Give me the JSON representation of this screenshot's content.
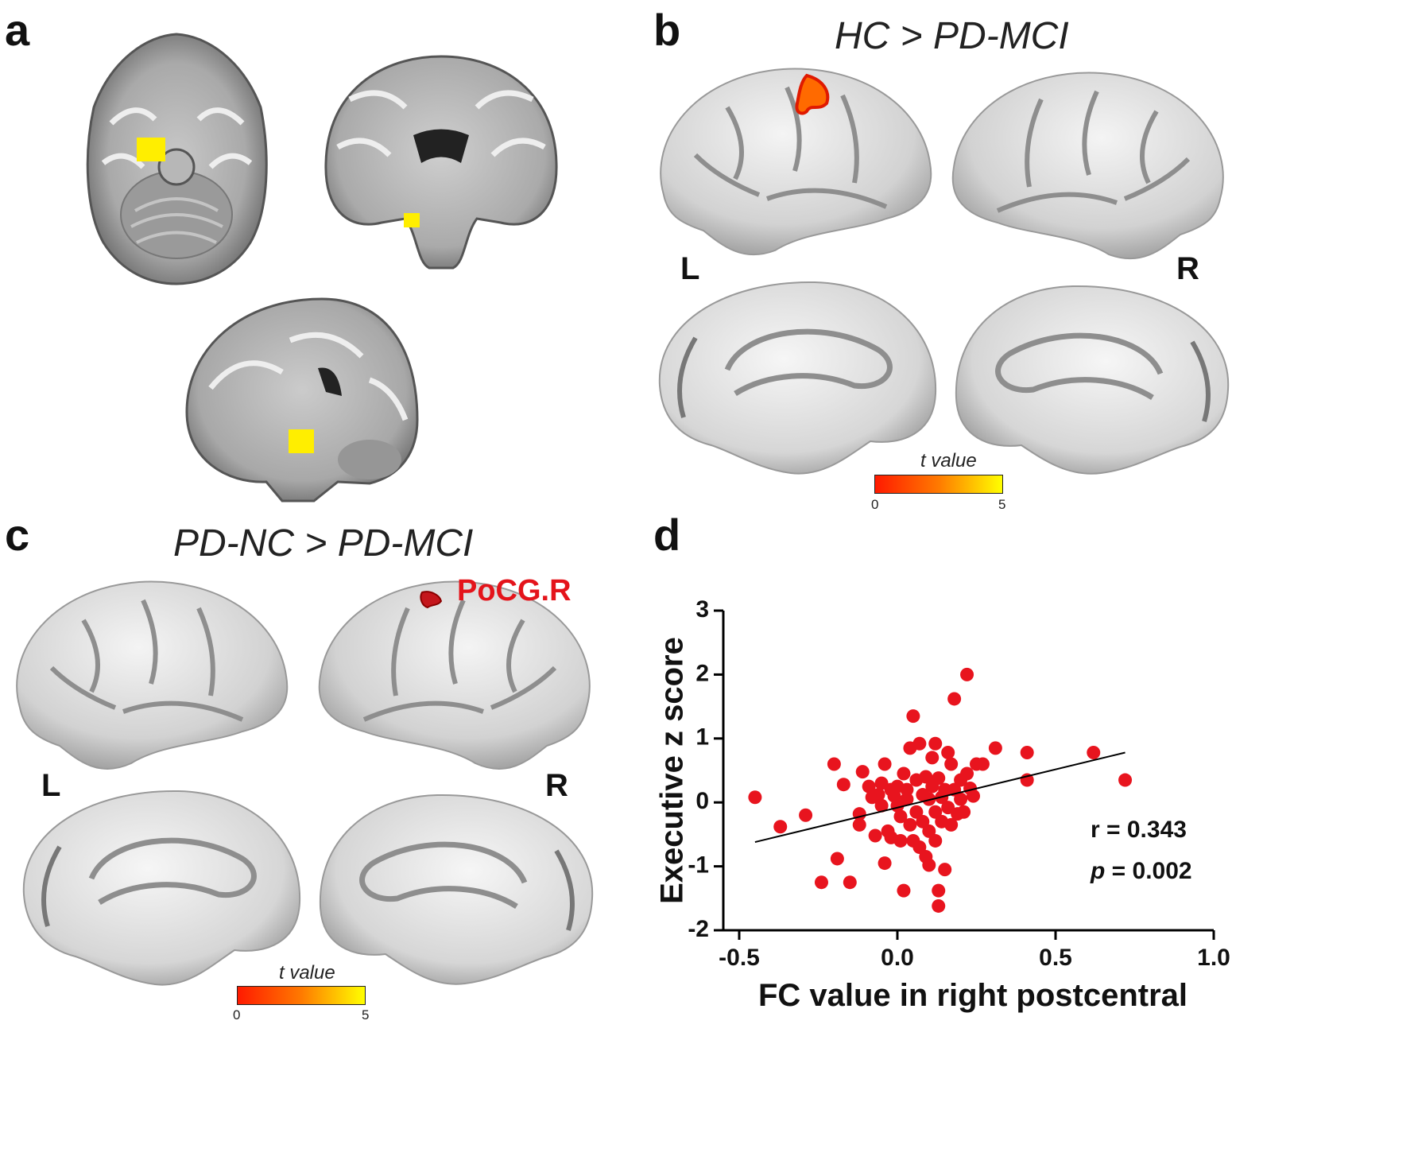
{
  "panels": {
    "a": {
      "letter": "a"
    },
    "b": {
      "letter": "b",
      "title": "HC > PD-MCI",
      "left_label": "L",
      "right_label": "R",
      "colorbar": {
        "title": "t value",
        "min": "0",
        "max": "5"
      }
    },
    "c": {
      "letter": "c",
      "title": "PD-NC > PD-MCI",
      "left_label": "L",
      "right_label": "R",
      "roi_label": "PoCG.R",
      "colorbar": {
        "title": "t value",
        "min": "0",
        "max": "5"
      }
    },
    "d": {
      "letter": "d",
      "stats": {
        "r_text": "r = 0.343",
        "p_letter": "p",
        "p_rest": " = 0.002"
      }
    }
  },
  "colors": {
    "roi_yellow": "#ffee00",
    "roi_red": "#e4141b",
    "scatter_point": "#e8141e"
  },
  "chart_data": {
    "type": "scatter",
    "xlabel": "FC value in right postcentral",
    "ylabel": "Executive z score",
    "xlim": [
      -0.5,
      1.0
    ],
    "ylim": [
      -2,
      3
    ],
    "xticks": [
      "-0.5",
      "0.0",
      "0.5",
      "1.0"
    ],
    "yticks": [
      "-2",
      "-1",
      "0",
      "1",
      "2",
      "3"
    ],
    "regression": {
      "x": [
        -0.45,
        0.72
      ],
      "y": [
        -0.62,
        0.78
      ]
    },
    "points": [
      [
        -0.45,
        0.08
      ],
      [
        -0.37,
        -0.38
      ],
      [
        -0.29,
        -0.2
      ],
      [
        -0.24,
        -1.25
      ],
      [
        -0.2,
        0.6
      ],
      [
        -0.19,
        -0.88
      ],
      [
        -0.17,
        0.28
      ],
      [
        -0.15,
        -1.25
      ],
      [
        -0.12,
        -0.35
      ],
      [
        -0.12,
        -0.18
      ],
      [
        -0.11,
        0.48
      ],
      [
        -0.09,
        0.25
      ],
      [
        -0.08,
        0.08
      ],
      [
        -0.07,
        -0.52
      ],
      [
        -0.06,
        0.12
      ],
      [
        -0.05,
        -0.05
      ],
      [
        -0.05,
        0.3
      ],
      [
        -0.04,
        -0.95
      ],
      [
        -0.04,
        0.6
      ],
      [
        -0.03,
        -0.45
      ],
      [
        -0.02,
        0.2
      ],
      [
        -0.02,
        -0.55
      ],
      [
        -0.01,
        0.1
      ],
      [
        0.0,
        0.25
      ],
      [
        0.0,
        -0.05
      ],
      [
        0.01,
        -0.22
      ],
      [
        0.01,
        -0.6
      ],
      [
        0.02,
        0.45
      ],
      [
        0.02,
        -1.38
      ],
      [
        0.03,
        0.05
      ],
      [
        0.03,
        0.2
      ],
      [
        0.04,
        -0.35
      ],
      [
        0.04,
        0.85
      ],
      [
        0.05,
        -0.6
      ],
      [
        0.05,
        1.35
      ],
      [
        0.06,
        0.35
      ],
      [
        0.06,
        -0.15
      ],
      [
        0.07,
        0.92
      ],
      [
        0.07,
        -0.7
      ],
      [
        0.08,
        0.12
      ],
      [
        0.08,
        -0.3
      ],
      [
        0.09,
        -0.85
      ],
      [
        0.09,
        0.4
      ],
      [
        0.1,
        -0.98
      ],
      [
        0.1,
        0.05
      ],
      [
        0.1,
        -0.45
      ],
      [
        0.11,
        0.7
      ],
      [
        0.11,
        0.25
      ],
      [
        0.12,
        -0.15
      ],
      [
        0.12,
        0.92
      ],
      [
        0.12,
        -0.6
      ],
      [
        0.13,
        0.38
      ],
      [
        0.13,
        -1.38
      ],
      [
        0.13,
        -1.62
      ],
      [
        0.14,
        0.08
      ],
      [
        0.14,
        -0.3
      ],
      [
        0.15,
        -1.05
      ],
      [
        0.15,
        0.2
      ],
      [
        0.16,
        0.78
      ],
      [
        0.16,
        -0.08
      ],
      [
        0.17,
        0.6
      ],
      [
        0.17,
        -0.35
      ],
      [
        0.18,
        1.62
      ],
      [
        0.18,
        0.2
      ],
      [
        0.19,
        -0.18
      ],
      [
        0.2,
        0.35
      ],
      [
        0.2,
        0.05
      ],
      [
        0.21,
        -0.15
      ],
      [
        0.22,
        0.45
      ],
      [
        0.22,
        2.0
      ],
      [
        0.23,
        0.22
      ],
      [
        0.24,
        0.1
      ],
      [
        0.25,
        0.6
      ],
      [
        0.27,
        0.6
      ],
      [
        0.31,
        0.85
      ],
      [
        0.41,
        0.35
      ],
      [
        0.41,
        0.78
      ],
      [
        0.62,
        0.78
      ],
      [
        0.72,
        0.35
      ]
    ]
  }
}
